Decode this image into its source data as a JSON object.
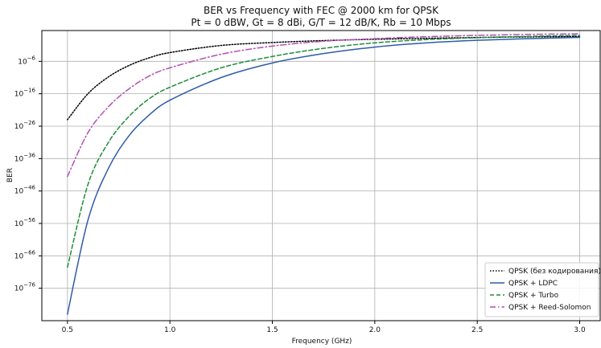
{
  "chart_data": {
    "type": "line",
    "title": "BER vs Frequency with FEC @ 2000 km for QPSK",
    "subtitle": "Pt = 0 dBW, Gt = 8 dBi, G/T = 12 dB/K, Rb = 10 Mbps",
    "xlabel": "Frequency (GHz)",
    "ylabel": "BER",
    "xlim": [
      0.375,
      3.1
    ],
    "ylim_log10": [
      -86,
      3.5
    ],
    "yscale": "log",
    "grid": true,
    "legend_position": "bottom-right",
    "x_ticks": [
      {
        "value": 0.5,
        "label": "0.5"
      },
      {
        "value": 1.0,
        "label": "1.0"
      },
      {
        "value": 1.5,
        "label": "1.5"
      },
      {
        "value": 2.0,
        "label": "2.0"
      },
      {
        "value": 2.5,
        "label": "2.5"
      },
      {
        "value": 3.0,
        "label": "3.0"
      }
    ],
    "y_ticks": [
      {
        "log10": -6,
        "exp": "−6"
      },
      {
        "log10": -16,
        "exp": "−16"
      },
      {
        "log10": -26,
        "exp": "−26"
      },
      {
        "log10": -36,
        "exp": "−36"
      },
      {
        "log10": -46,
        "exp": "−46"
      },
      {
        "log10": -56,
        "exp": "−56"
      },
      {
        "log10": -66,
        "exp": "−66"
      },
      {
        "log10": -76,
        "exp": "−76"
      }
    ],
    "y_tick_base": "10",
    "x": [
      0.5,
      0.6,
      0.7,
      0.8,
      0.9,
      1.0,
      1.25,
      1.5,
      1.75,
      2.0,
      2.25,
      2.5,
      2.75,
      3.0
    ],
    "series": [
      {
        "name": "QPSK (без кодирования)",
        "color": "#000000",
        "dash": "dotted",
        "log10_values": [
          -24.0,
          -16.0,
          -10.8,
          -7.3,
          -4.9,
          -3.3,
          -1.1,
          -0.2,
          0.4,
          0.8,
          1.1,
          1.35,
          1.55,
          1.65
        ]
      },
      {
        "name": "QPSK + LDPC",
        "color": "#2f5aa8",
        "dash": "solid",
        "log10_values": [
          -84.0,
          -55.0,
          -39.0,
          -29.0,
          -22.5,
          -18.0,
          -11.0,
          -6.5,
          -3.6,
          -1.6,
          -0.3,
          0.5,
          1.0,
          1.4
        ]
      },
      {
        "name": "QPSK + Turbo",
        "color": "#1e8c3a",
        "dash": "dashed",
        "log10_values": [
          -69.5,
          -44.0,
          -31.0,
          -23.0,
          -17.5,
          -14.0,
          -8.0,
          -4.5,
          -2.0,
          -0.3,
          0.7,
          1.3,
          1.7,
          2.0
        ]
      },
      {
        "name": "QPSK + Reed-Solomon",
        "color": "#b44fb4",
        "dash": "dashdot",
        "log10_values": [
          -41.5,
          -28.0,
          -20.0,
          -14.5,
          -10.5,
          -8.0,
          -3.8,
          -1.3,
          0.2,
          1.0,
          1.6,
          2.0,
          2.3,
          2.5
        ]
      }
    ]
  }
}
